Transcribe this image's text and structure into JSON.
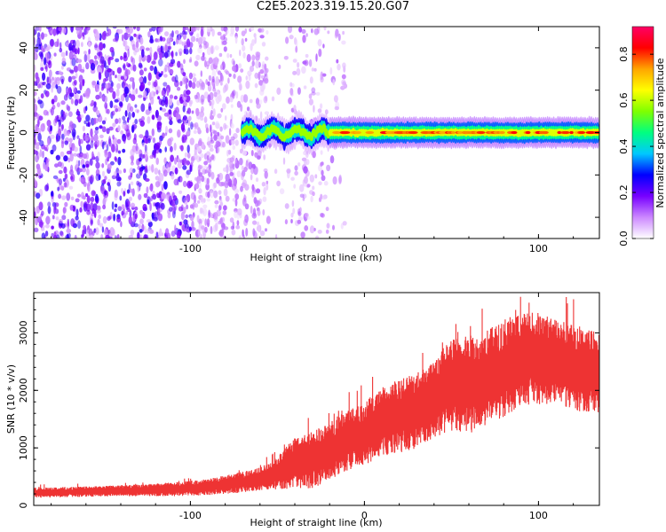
{
  "title": "C2E5.2023.319.15.20.G07",
  "chart_data": [
    {
      "type": "heatmap",
      "xlabel": "Height of straight line (km)",
      "ylabel": "Frequency (Hz)",
      "xlim": [
        -190,
        135
      ],
      "ylim": [
        -50,
        50
      ],
      "x_ticks": [
        -100,
        0,
        100
      ],
      "y_ticks": [
        -40,
        -20,
        0,
        20,
        40
      ],
      "colorbar": {
        "label": "Normalized spectral amplitude",
        "range": [
          0.0,
          0.92
        ],
        "ticks": [
          0.0,
          0.2,
          0.4,
          0.6,
          0.8
        ],
        "colormap": [
          "#ffffff",
          "#cc88ff",
          "#7700ff",
          "#0000ff",
          "#00c8ff",
          "#00ff80",
          "#7fff00",
          "#ffff00",
          "#ffa500",
          "#ff0000",
          "#ff0066"
        ]
      },
      "ridge": {
        "x_start": -70,
        "x_end": 135,
        "frequency": 0,
        "peak_amplitude_min_height": -20,
        "peak_amplitude": 0.85
      },
      "noise_region": {
        "x_start": -190,
        "x_end": -25,
        "amplitude_range": [
          0.05,
          0.25
        ]
      }
    },
    {
      "type": "line",
      "xlabel": "Height of straight line (km)",
      "ylabel": "SNR (10 * v/v)",
      "xlim": [
        -190,
        135
      ],
      "ylim": [
        0,
        3700
      ],
      "x_ticks": [
        -100,
        0,
        100
      ],
      "y_ticks": [
        0,
        1000,
        2000,
        3000
      ],
      "color": "#ee3333",
      "series": [
        {
          "x": [
            -190,
            -160,
            -130,
            -110,
            -90,
            -75,
            -60,
            -50,
            -40,
            -30,
            -20,
            -10,
            0,
            10,
            20,
            30,
            40,
            50,
            60,
            70,
            80,
            90,
            100,
            110,
            120,
            135
          ],
          "y": [
            220,
            240,
            260,
            280,
            320,
            380,
            460,
            560,
            740,
            800,
            930,
            1150,
            1250,
            1450,
            1550,
            1650,
            1850,
            2100,
            2100,
            2200,
            2350,
            2550,
            2550,
            2500,
            2400,
            2300
          ],
          "spread": [
            90,
            90,
            100,
            120,
            140,
            170,
            200,
            280,
            450,
            500,
            500,
            550,
            550,
            600,
            650,
            650,
            700,
            800,
            850,
            850,
            850,
            800,
            800,
            750,
            750,
            700
          ]
        }
      ]
    }
  ]
}
